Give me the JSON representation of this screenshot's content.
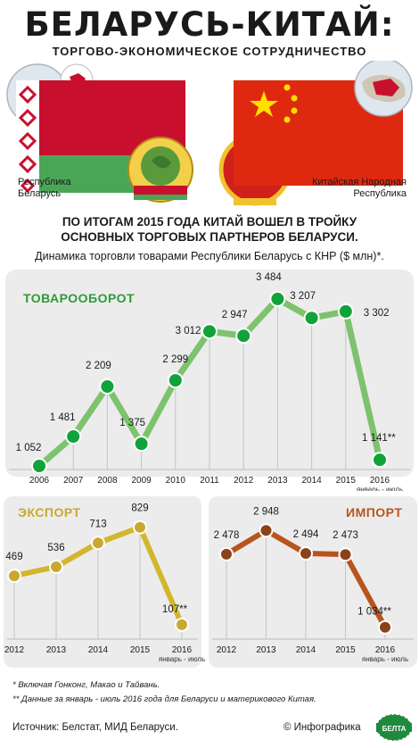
{
  "header": {
    "title": "БЕЛАРУСЬ-КИТАЙ:",
    "subtitle": "ТОРГОВО-ЭКОНОМИЧЕСКОЕ СОТРУДНИЧЕСТВО"
  },
  "countries": {
    "belarus": [
      "Республика",
      "Беларусь"
    ],
    "china": [
      "Китайская Народная",
      "Республика"
    ]
  },
  "headline": [
    "ПО ИТОГАМ 2015 ГОДА КИТАЙ ВОШЕЛ В ТРОЙКУ",
    "ОСНОВНЫХ ТОРГОВЫХ ПАРТНЕРОВ БЕЛАРУСИ."
  ],
  "caption": "Динамика торговли товарами Республики Беларусь с КНР ($ млн)*.",
  "period_note": "январь - июль",
  "colors": {
    "green": "#7dc36e",
    "green_dot": "#12a23a",
    "yellow": "#d2b62e",
    "yellow_dot": "#c9a830",
    "brown": "#b8541e",
    "brown_dot": "#8a4318",
    "panel": "#ececec"
  },
  "chart_data": [
    {
      "type": "line",
      "title": "ТОВАРООБОРОТ",
      "categories": [
        "2006",
        "2007",
        "2008",
        "2009",
        "2010",
        "2011",
        "2012",
        "2013",
        "2014",
        "2015",
        "2016"
      ],
      "values": [
        1052,
        1481,
        2209,
        1375,
        2299,
        3012,
        2947,
        3484,
        3207,
        3302,
        1141
      ],
      "value_labels": [
        "1 052",
        "1 481",
        "2 209",
        "1 375",
        "2 299",
        "3 012",
        "2 947",
        "3 484",
        "3 207",
        "3 302",
        "1 141**"
      ]
    },
    {
      "type": "line",
      "title": "ЭКСПОРТ",
      "categories": [
        "2012",
        "2013",
        "2014",
        "2015",
        "2016"
      ],
      "values": [
        469,
        536,
        713,
        829,
        107
      ],
      "value_labels": [
        "469",
        "536",
        "713",
        "829",
        "107**"
      ]
    },
    {
      "type": "line",
      "title": "ИМПОРТ",
      "categories": [
        "2012",
        "2013",
        "2014",
        "2015",
        "2016"
      ],
      "values": [
        2478,
        2948,
        2494,
        2473,
        1034
      ],
      "value_labels": [
        "2 478",
        "2 948",
        "2 494",
        "2 473",
        "1 034**"
      ]
    }
  ],
  "footnotes": [
    "* Включая Гонконг, Макао и Тайвань.",
    "** Данные за январь - июль 2016 года для Беларуси и материкового Китая."
  ],
  "source": "Источник: Белстат, МИД Беларуси.",
  "credit": "© Инфографика",
  "logo_text": "БЕЛТА"
}
